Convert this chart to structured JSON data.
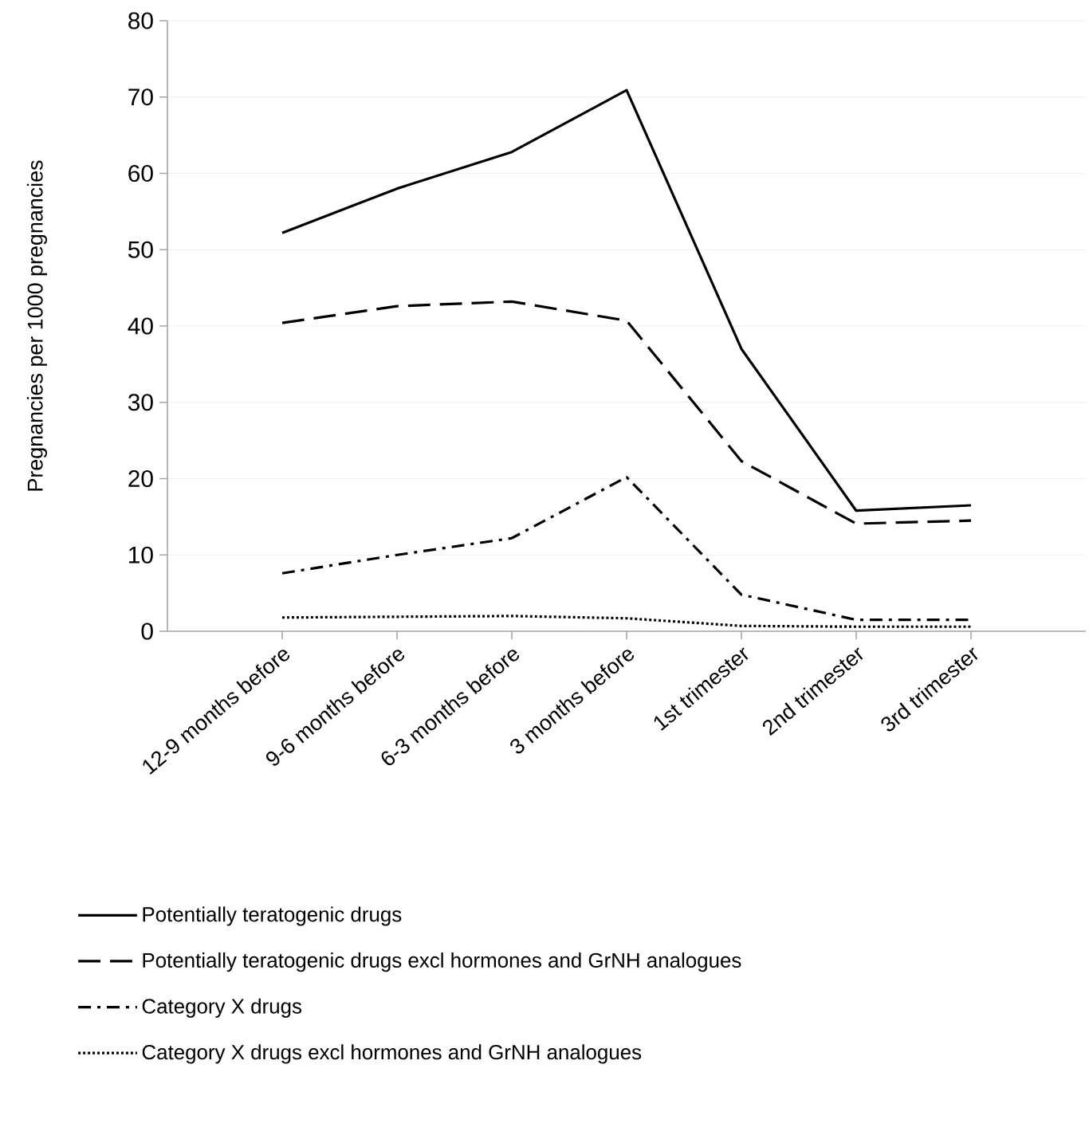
{
  "chart_data": {
    "type": "line",
    "ylabel": "Pregnancies per 1000 pregnancies",
    "categories": [
      "12-9 months before",
      "9-6 months before",
      "6-3 months before",
      "3 months before",
      "1st trimester",
      "2nd trimester",
      "3rd trimester"
    ],
    "ylim": [
      0,
      80
    ],
    "yticks": [
      0,
      10,
      20,
      30,
      40,
      50,
      60,
      70,
      80
    ],
    "grid": "y",
    "legend": "bottom",
    "marker": "none",
    "series": [
      {
        "name": "Potentially teratogenic drugs",
        "color": "#000000",
        "line_style": "solid",
        "values": [
          52.2,
          58,
          62.8,
          70.9,
          37,
          15.8,
          16.5
        ]
      },
      {
        "name": "Potentially teratogenic drugs excl hormones and GrNH analogues",
        "color": "#000000",
        "line_style": "dashed",
        "values": [
          40.4,
          42.6,
          43.2,
          40.7,
          22.3,
          14.1,
          14.5
        ]
      },
      {
        "name": "Category X drugs",
        "color": "#000000",
        "line_style": "dashdot",
        "values": [
          7.6,
          10,
          12.2,
          20.2,
          4.8,
          1.5,
          1.5
        ]
      },
      {
        "name": "Category X drugs excl hormones and GrNH analogues",
        "color": "#000000",
        "line_style": "dotted",
        "values": [
          1.8,
          1.9,
          2,
          1.7,
          0.7,
          0.6,
          0.6
        ]
      }
    ]
  }
}
